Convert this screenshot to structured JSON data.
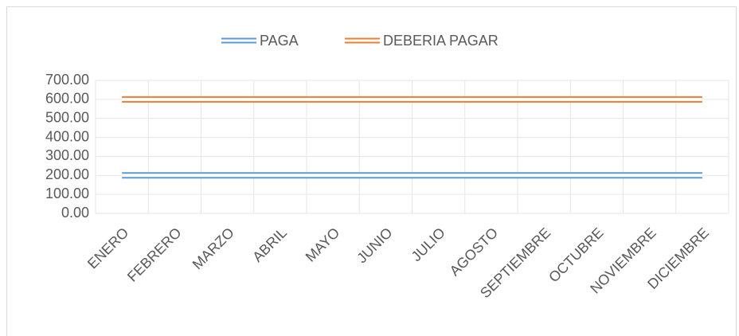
{
  "chart_data": {
    "type": "line",
    "categories": [
      "ENERO",
      "FEBRERO",
      "MARZO",
      "ABRIL",
      "MAYO",
      "JUNIO",
      "JULIO",
      "AGOSTO",
      "SEPTIEMBRE",
      "OCTUBRE",
      "NOVIEMBRE",
      "DICIEMBRE"
    ],
    "series": [
      {
        "name": "PAGA",
        "color": "#5b9bd5",
        "values": [
          200,
          200,
          200,
          200,
          200,
          200,
          200,
          200,
          200,
          200,
          200,
          200
        ]
      },
      {
        "name": "DEBERIA PAGAR",
        "color": "#ed7d31",
        "values": [
          600,
          600,
          600,
          600,
          600,
          600,
          600,
          600,
          600,
          600,
          600,
          600
        ]
      }
    ],
    "ylim": [
      0,
      700
    ],
    "yticks": [
      {
        "value": 0,
        "label": "0.00"
      },
      {
        "value": 100,
        "label": "100.00"
      },
      {
        "value": 200,
        "label": "200.00"
      },
      {
        "value": 300,
        "label": "300.00"
      },
      {
        "value": 400,
        "label": "400.00"
      },
      {
        "value": 500,
        "label": "500.00"
      },
      {
        "value": 600,
        "label": "600.00"
      },
      {
        "value": 700,
        "label": "700.00"
      }
    ],
    "grid": true,
    "legend": "top"
  }
}
